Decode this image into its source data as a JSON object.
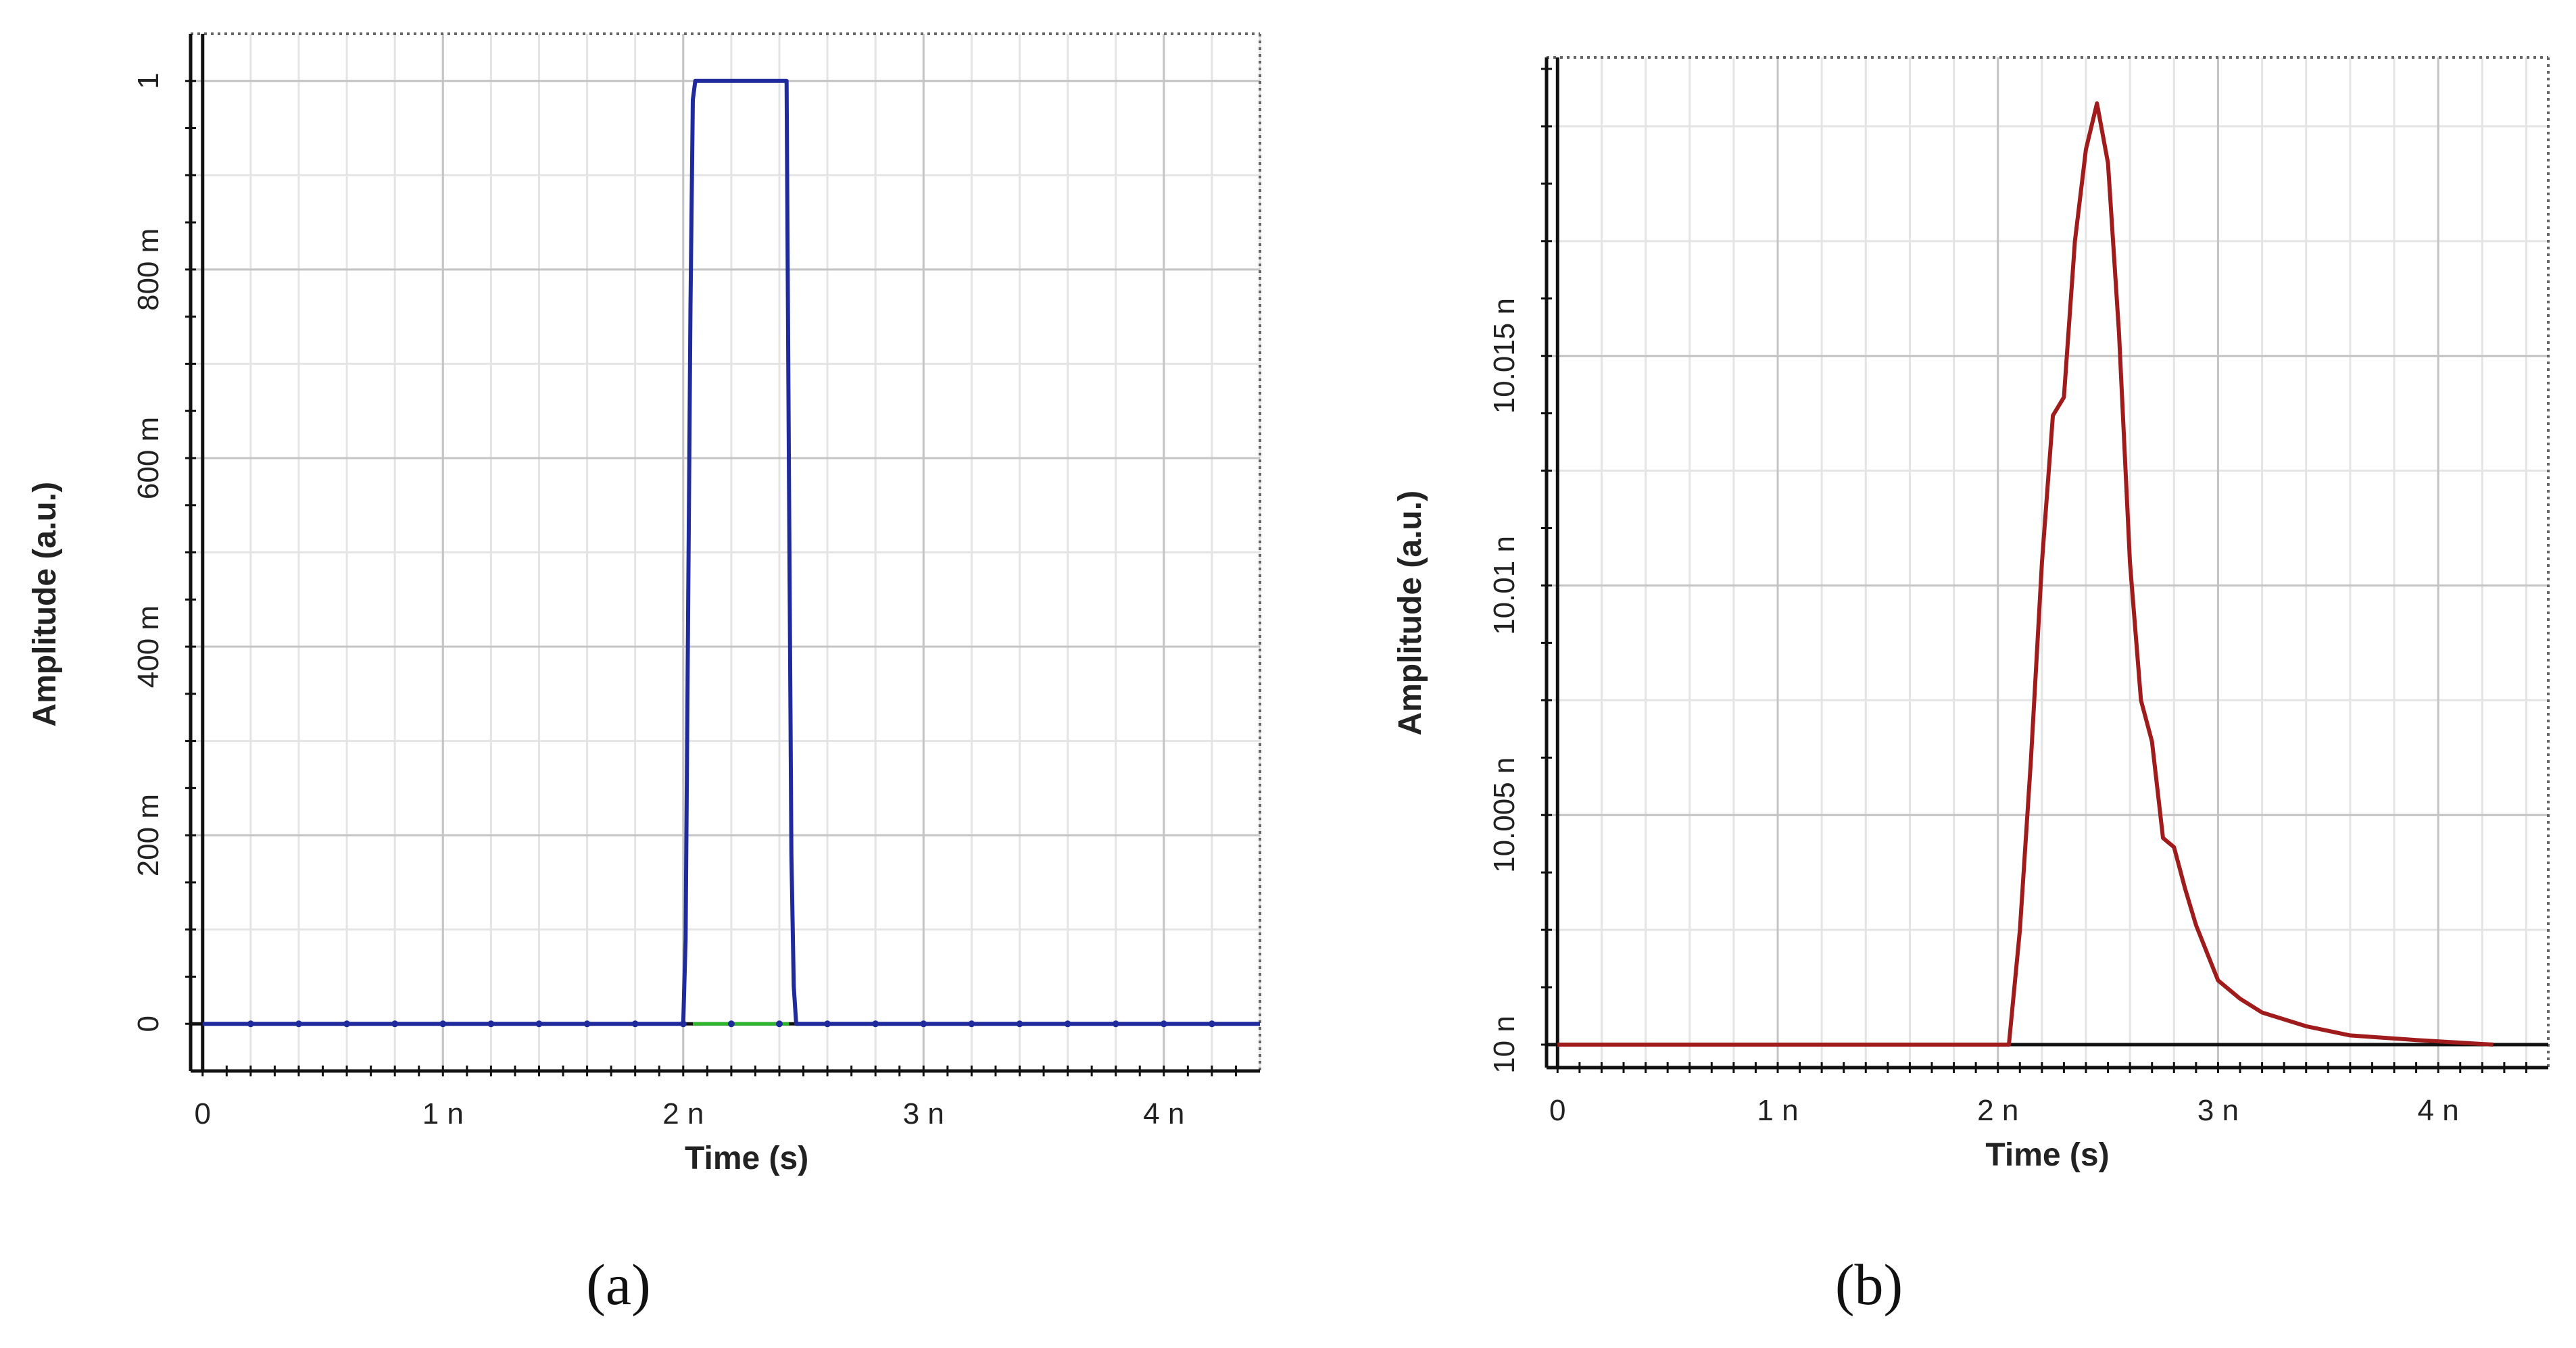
{
  "captions": [
    "(a)",
    "(b)"
  ],
  "chart_data": [
    {
      "type": "line",
      "panel": "(a)",
      "xlabel": "Time (s)",
      "ylabel": "Amplitude (a.u.)",
      "xlim": [
        -5e-11,
        4.4e-09
      ],
      "ylim": [
        -0.05,
        1.05
      ],
      "x_ticks": [
        {
          "value": 0,
          "label": "0"
        },
        {
          "value": 1e-09,
          "label": "1 n"
        },
        {
          "value": 2e-09,
          "label": "2 n"
        },
        {
          "value": 3e-09,
          "label": "3 n"
        },
        {
          "value": 4e-09,
          "label": "4 n"
        }
      ],
      "y_ticks": [
        {
          "value": 0,
          "label": "0"
        },
        {
          "value": 0.2,
          "label": "200 m"
        },
        {
          "value": 0.4,
          "label": "400 m"
        },
        {
          "value": 0.6,
          "label": "600 m"
        },
        {
          "value": 0.8,
          "label": "800 m"
        },
        {
          "value": 1,
          "label": "1"
        }
      ],
      "grid": true,
      "colors": {
        "series": "#1f2a9c",
        "secondary": "#2db52d"
      },
      "series": [
        {
          "x": [
            0,
            2e-09,
            2.01e-09,
            2.03e-09,
            2.04e-09,
            2.05e-09,
            2.43e-09,
            2.44e-09,
            2.45e-09,
            2.46e-09,
            2.47e-09,
            4.4e-09
          ],
          "y": [
            0,
            0,
            0.09,
            0.76,
            0.98,
            1,
            1,
            0.58,
            0.18,
            0.04,
            0,
            0
          ]
        },
        {
          "x": [
            2.04e-09,
            2.44e-09
          ],
          "y": [
            0,
            0
          ]
        }
      ]
    },
    {
      "type": "line",
      "panel": "(b)",
      "xlabel": "Time (s)",
      "ylabel": "Amplitude (a.u.)",
      "xlim": [
        -5e-11,
        4.5e-09
      ],
      "ylim": [
        9.9995e-09,
        1.00215e-08
      ],
      "x_ticks": [
        {
          "value": 0,
          "label": "0"
        },
        {
          "value": 1e-09,
          "label": "1 n"
        },
        {
          "value": 2e-09,
          "label": "2 n"
        },
        {
          "value": 3e-09,
          "label": "3 n"
        },
        {
          "value": 4e-09,
          "label": "4 n"
        }
      ],
      "y_ticks": [
        {
          "value": 1e-08,
          "label": "10 n"
        },
        {
          "value": 1.0005e-08,
          "label": "10.005 n"
        },
        {
          "value": 1.001e-08,
          "label": "10.01 n"
        },
        {
          "value": 1.0015e-08,
          "label": "10.015 n"
        }
      ],
      "grid": true,
      "colors": {
        "series": "#a01c1c"
      },
      "series": [
        {
          "x": [
            0,
            2.05e-09,
            2.1e-09,
            2.15e-09,
            2.2e-09,
            2.25e-09,
            2.3e-09,
            2.35e-09,
            2.4e-09,
            2.45e-09,
            2.5e-09,
            2.55e-09,
            2.6e-09,
            2.65e-09,
            2.7e-09,
            2.75e-09,
            2.8e-09,
            2.85e-09,
            2.9e-09,
            2.95e-09,
            3e-09,
            3.1e-09,
            3.2e-09,
            3.4e-09,
            3.6e-09,
            3.9e-09,
            4.25e-09
          ],
          "y": [
            1e-08,
            1e-08,
            1.00025e-08,
            1.00062e-08,
            1.00105e-08,
            1.00137e-08,
            1.00141e-08,
            1.00175e-08,
            1.00195e-08,
            1.00205e-08,
            1.00192e-08,
            1.00155e-08,
            1.00105e-08,
            1.00075e-08,
            1.00066e-08,
            1.00045e-08,
            1.00043e-08,
            1.00034e-08,
            1.00026e-08,
            1.0002e-08,
            1.00014e-08,
            1.0001e-08,
            1.00007e-08,
            1.00004e-08,
            1.00002e-08,
            1.00001e-08,
            1e-08
          ]
        }
      ]
    }
  ]
}
